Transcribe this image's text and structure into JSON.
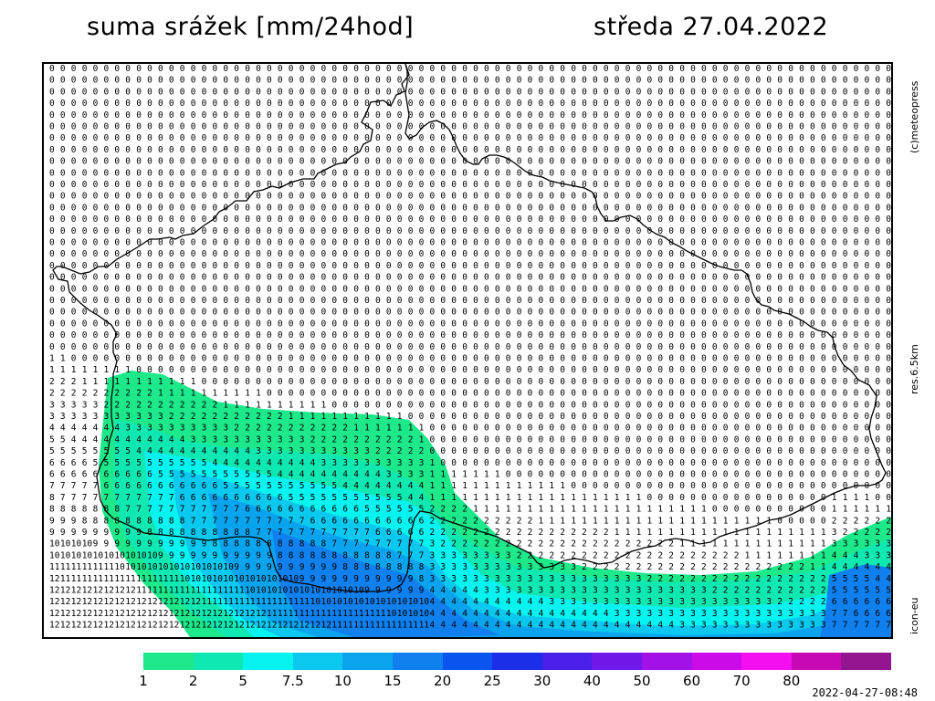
{
  "header": {
    "title": "suma srážek [mm/24hod]",
    "date": "středa 27.04.2022"
  },
  "side_labels": {
    "copyright": "(c)meteopress",
    "resolution": "res.6.5km",
    "model": "icon-eu"
  },
  "legend": {
    "labels": [
      "1",
      "2",
      "5",
      "7.5",
      "10",
      "15",
      "20",
      "25",
      "30",
      "40",
      "50",
      "60",
      "70",
      "80"
    ],
    "colors": [
      "#1de98b",
      "#10e8b2",
      "#06f3f0",
      "#0ac8ee",
      "#0aa4ee",
      "#1080ee",
      "#0a55ee",
      "#1b2fe9",
      "#4a1fe7",
      "#7118ea",
      "#a211e6",
      "#cb0ce9",
      "#f30ff0",
      "#c80ab4",
      "#941590"
    ]
  },
  "timestamp": "2022-04-27-08:48"
}
